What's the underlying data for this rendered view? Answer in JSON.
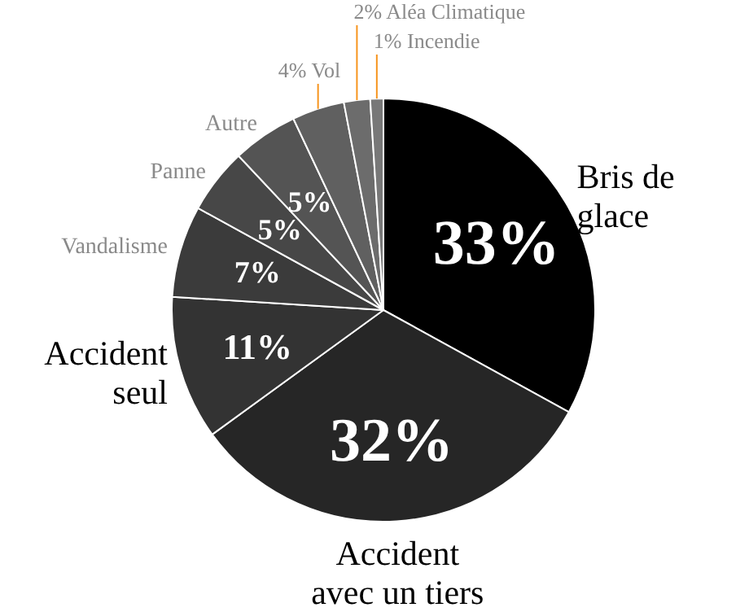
{
  "chart_data": {
    "type": "pie",
    "categories": [
      "Bris de\nglace",
      "Accident\navec un tiers",
      "Accident\nseul",
      "Vandalisme",
      "Panne",
      "Autre",
      "Vol",
      "Aléa Climatique",
      "Incendie"
    ],
    "values": [
      33,
      32,
      11,
      7,
      5,
      5,
      4,
      2,
      1
    ],
    "value_labels": [
      "33%",
      "32%",
      "11%",
      "7%",
      "5%",
      "5%",
      "4%",
      "2%",
      "1%"
    ],
    "colors": [
      "#000000",
      "#262626",
      "#333333",
      "#3b3b3b",
      "#474747",
      "#545454",
      "#606060",
      "#6c6c6c",
      "#787878"
    ]
  }
}
